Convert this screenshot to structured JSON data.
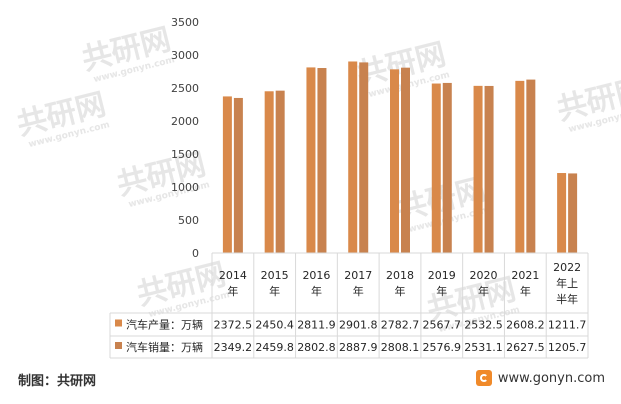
{
  "chart_data": {
    "type": "bar",
    "categories": [
      "2014年",
      "2015年",
      "2016年",
      "2017年",
      "2018年",
      "2019年",
      "2020年",
      "2021年",
      "2022年上半年"
    ],
    "category_lines": [
      [
        "2014",
        "年"
      ],
      [
        "2015",
        "年"
      ],
      [
        "2016",
        "年"
      ],
      [
        "2017",
        "年"
      ],
      [
        "2018",
        "年"
      ],
      [
        "2019",
        "年"
      ],
      [
        "2020",
        "年"
      ],
      [
        "2021",
        "年"
      ],
      [
        "2022",
        "年上",
        "半年"
      ]
    ],
    "series": [
      {
        "name": "汽车产量：万辆",
        "values": [
          2372.5,
          2450.4,
          2811.9,
          2901.8,
          2782.7,
          2567.7,
          2532.5,
          2608.2,
          1211.7
        ],
        "color": "#d9894a"
      },
      {
        "name": "汽车销量：万辆",
        "values": [
          2349.2,
          2459.8,
          2802.8,
          2887.9,
          2808.1,
          2576.9,
          2531.1,
          2627.5,
          1205.7
        ],
        "color": "#c8824f"
      }
    ],
    "yticks": [
      0,
      500,
      1000,
      1500,
      2000,
      2500,
      3000,
      3500
    ],
    "ylim": [
      0,
      3500
    ],
    "grid": false,
    "legend": "data-table"
  },
  "footer": {
    "source": "制图：共研网",
    "website": "www.gonyn.com"
  },
  "watermark": {
    "text": "共研网",
    "subtext": "www.gonyn.com",
    "color": "#e6e6e6"
  },
  "colors": {
    "production": "#d9894a",
    "sales": "#c8824f",
    "table_border": "#d9d9d9",
    "logo": "#f08a2a"
  }
}
